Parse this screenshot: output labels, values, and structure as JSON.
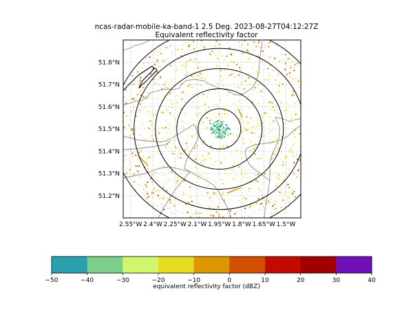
{
  "title": "ncas-radar-mobile-ka-band-1 2.5 Deg. 2023-08-27T04:12:27Z",
  "subtitle": "Equivalent reflectivity factor",
  "x_ticks": [
    "2.55°W",
    "2.4°W",
    "2.25°W",
    "2.1°W",
    "1.95°W",
    "1.8°W",
    "1.65°W",
    "1.5°W"
  ],
  "y_ticks": [
    "51.8°N",
    "51.7°N",
    "51.6°N",
    "51.5°N",
    "51.4°N",
    "51.3°N",
    "51.2°N"
  ],
  "colorbar": {
    "label": "equivalent reflectivity factor (dBZ)",
    "ticks": [
      "−50",
      "−40",
      "−30",
      "−20",
      "−10",
      "0",
      "10",
      "20",
      "30",
      "40"
    ],
    "colors": [
      "#2a9fad",
      "#7dce8c",
      "#d1f56c",
      "#e6db22",
      "#dc9600",
      "#d25000",
      "#c20b00",
      "#a10000",
      "#7010b8"
    ]
  },
  "chart_data": {
    "type": "scatter",
    "title": "ncas-radar-mobile-ka-band-1 2.5 Deg. 2023-08-27T04:12:27Z",
    "subtitle": "Equivalent reflectivity factor",
    "projection": "lon-lat map",
    "xlim": [
      -2.6,
      -1.4
    ],
    "ylim": [
      51.1,
      51.9
    ],
    "grid": true,
    "radar_center": {
      "lon": -1.95,
      "lat": 51.5
    },
    "range_rings": 5,
    "colorbar_range": [
      -50,
      40
    ],
    "colorbar_levels": [
      -50,
      -40,
      -30,
      -20,
      -10,
      0,
      10,
      20,
      30,
      40
    ]
  }
}
